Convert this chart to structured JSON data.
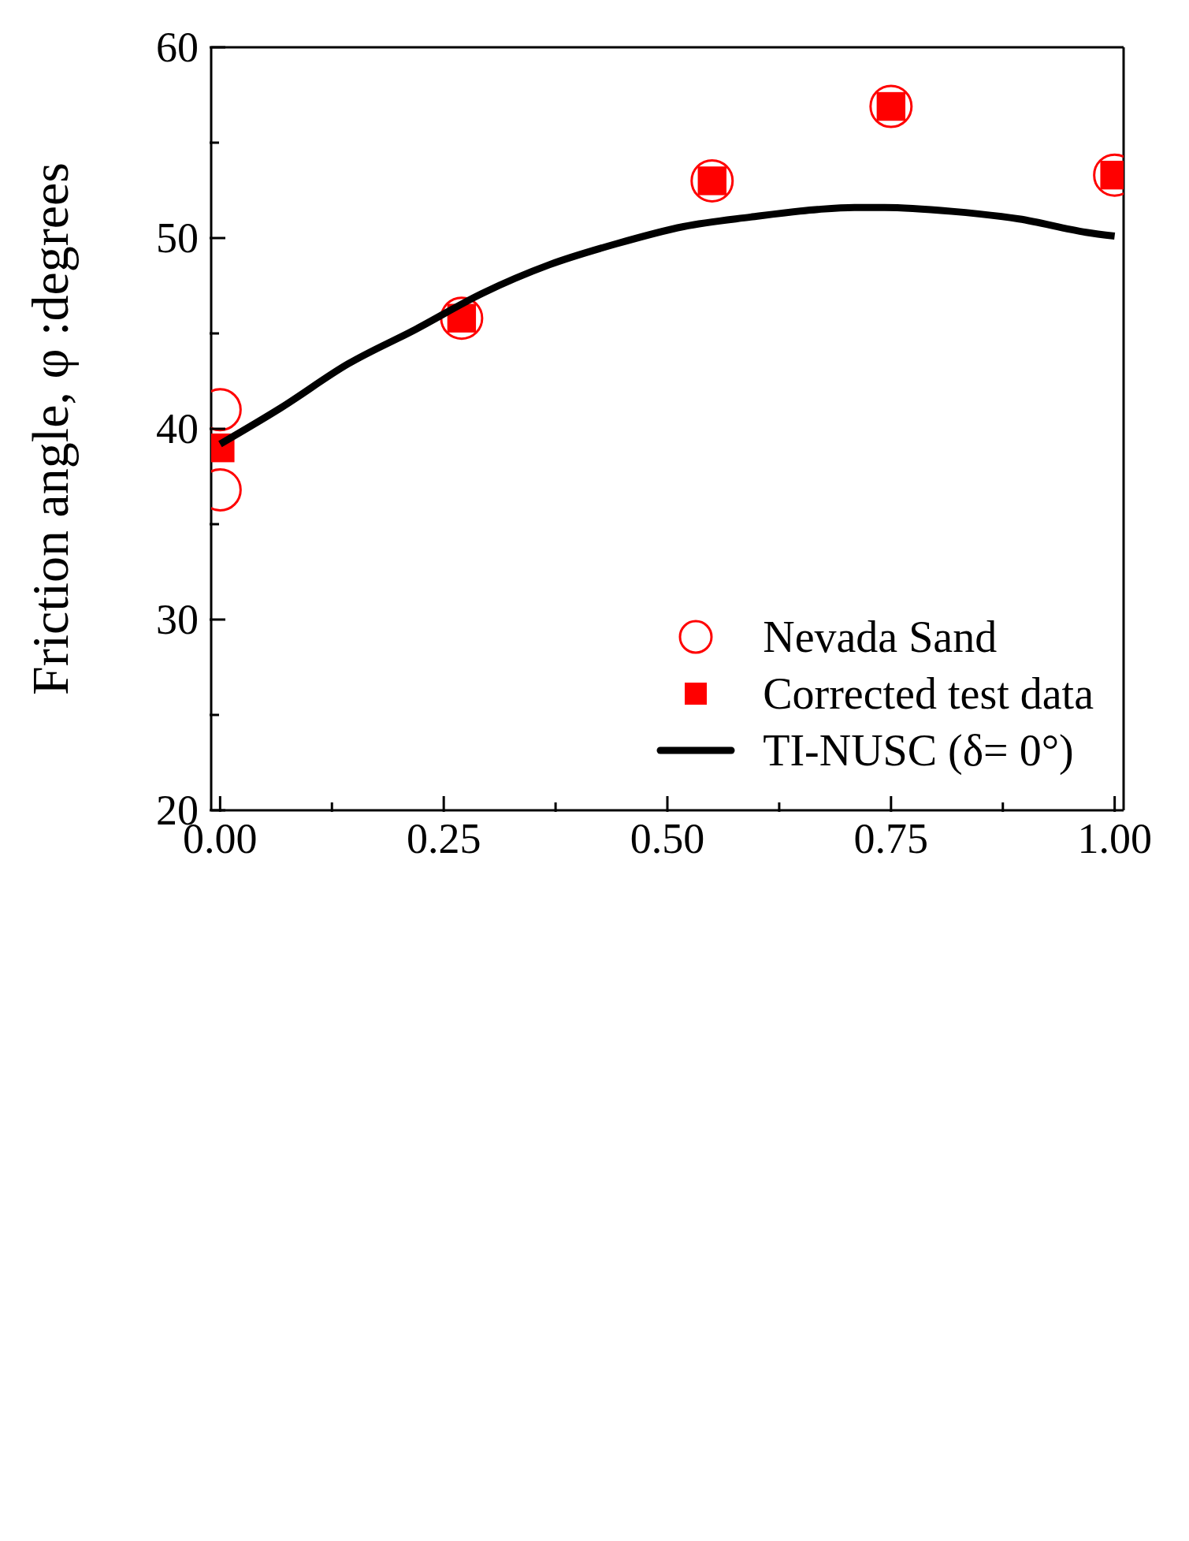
{
  "chart_data": {
    "type": "scatter",
    "xlim": [
      -0.01,
      1.01
    ],
    "xticks": [
      {
        "value": 0,
        "label": "0.00"
      },
      {
        "value": 0.125,
        "label": null
      },
      {
        "value": 0.25,
        "label": "0.25"
      },
      {
        "value": 0.375,
        "label": null
      },
      {
        "value": 0.5,
        "label": "0.50"
      },
      {
        "value": 0.625,
        "label": null
      },
      {
        "value": 0.75,
        "label": "0.75"
      },
      {
        "value": 0.875,
        "label": null
      },
      {
        "value": 1,
        "label": "1.00"
      }
    ],
    "ylim": [
      20,
      60
    ],
    "yticks": [
      20,
      {
        "value": 25,
        "label": null
      },
      30,
      {
        "value": 35,
        "label": null
      },
      40,
      {
        "value": 45,
        "label": null
      },
      50,
      {
        "value": 55,
        "label": null
      },
      60
    ],
    "ylabel": "Friction angle, φ :degrees",
    "legend": "bottom right",
    "grid": false,
    "series": [
      {
        "name": "Nevada Sand",
        "marker": "circle",
        "color": "#ff0000",
        "x": [
          0,
          0,
          0.27,
          0.55,
          0.75,
          1
        ],
        "values": [
          41.0,
          36.8,
          45.8,
          53.0,
          56.9,
          53.3
        ]
      },
      {
        "name": "Corrected test data",
        "marker": "square",
        "color": "#ff0000",
        "x": [
          0,
          0.27,
          0.55,
          0.75,
          1
        ],
        "values": [
          39.0,
          45.8,
          53.0,
          56.9,
          53.3
        ]
      },
      {
        "name": "TI-NUSC (δ= 0°)",
        "type": "line",
        "marker": "none",
        "line_style": "solid",
        "color": "#000000",
        "x": [
          0,
          0.068,
          0.143,
          0.218,
          0.293,
          0.368,
          0.443,
          0.518,
          0.593,
          0.668,
          0.709,
          0.743,
          0.818,
          0.893,
          0.968,
          1
        ],
        "values": [
          39.2,
          41.1,
          43.4,
          45.2,
          47.1,
          48.6,
          49.7,
          50.6,
          51.1,
          51.5,
          51.6,
          51.6,
          51.4,
          51.0,
          50.3,
          50.1
        ]
      }
    ]
  }
}
